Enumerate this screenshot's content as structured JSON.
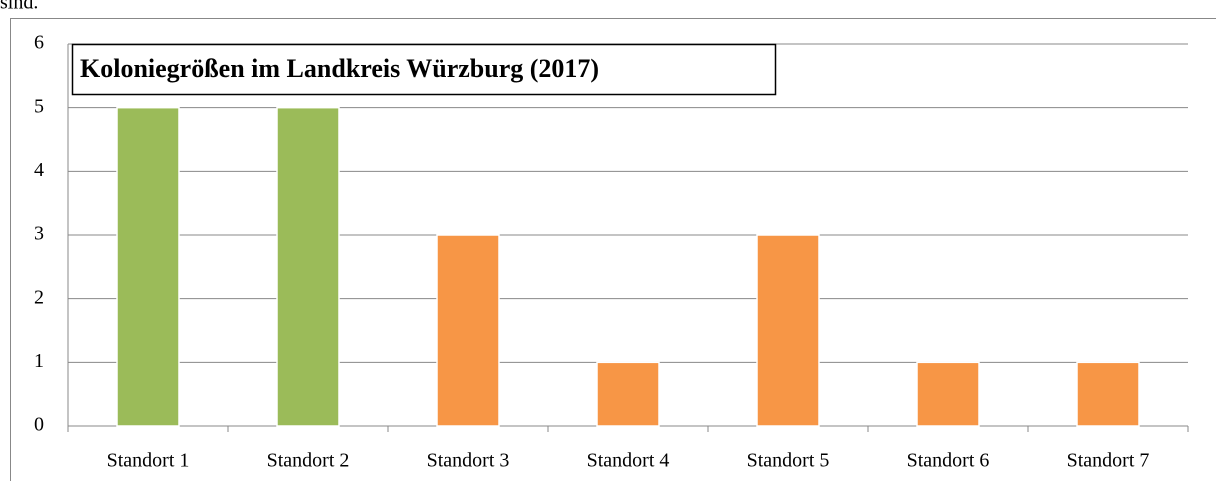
{
  "text_above": "sind.",
  "chart_data": {
    "type": "bar",
    "title": "Koloniegrößen im Landkreis Würzburg (2017)",
    "categories": [
      "Standort 1",
      "Standort 2",
      "Standort 3",
      "Standort 4",
      "Standort 5",
      "Standort 6",
      "Standort 7"
    ],
    "values": [
      5,
      5,
      3,
      1,
      3,
      1,
      1
    ],
    "colors": [
      "#9bbb59",
      "#9bbb59",
      "#f79646",
      "#f79646",
      "#f79646",
      "#f79646",
      "#f79646"
    ],
    "ylim": [
      0,
      6
    ],
    "yticks": [
      0,
      1,
      2,
      3,
      4,
      5,
      6
    ],
    "grid": true
  }
}
